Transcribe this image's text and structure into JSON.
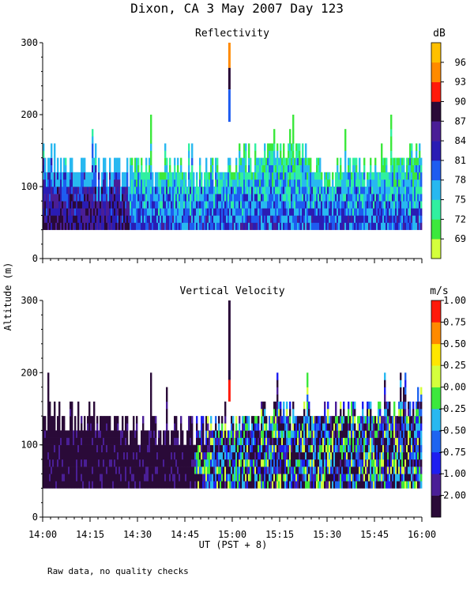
{
  "title": "Dixon, CA  3 May 2007  Day 123",
  "ylabel": "Altitude (m)",
  "xlabel": "UT  (PST + 8)",
  "footnote": "Raw data, no quality checks",
  "chart_data": [
    {
      "type": "heatmap",
      "name": "reflectivity",
      "title": "Reflectivity",
      "units_label": "dB",
      "x_range_hours": [
        14.0,
        16.0
      ],
      "ylim": [
        0,
        300
      ],
      "y_ticks": [
        0,
        100,
        200,
        300
      ],
      "x_ticks": [
        "14:00",
        "14:15",
        "14:30",
        "14:45",
        "15:00",
        "15:15",
        "15:30",
        "15:45",
        "16:00"
      ],
      "x_ticks_hours": [
        14.0,
        14.25,
        14.5,
        14.75,
        15.0,
        15.25,
        15.5,
        15.75,
        16.0
      ],
      "data_floor_m": 40,
      "colorbar": {
        "levels": [
          69,
          72,
          75,
          78,
          81,
          84,
          87,
          90,
          93,
          96
        ],
        "colors": [
          "#d4ff3c",
          "#3ce83c",
          "#30f0a0",
          "#28b8f0",
          "#1e5cf0",
          "#2a1cb4",
          "#4a1e96",
          "#2a0a38",
          "#ff1a0a",
          "#ff8a00",
          "#ffc000"
        ]
      },
      "annotations": {
        "spike_time_hours": 14.985,
        "spike_top_m": 300,
        "profile_top_m": {
          "14:00": 140,
          "14:15": 120,
          "14:30": 130,
          "14:45": 120,
          "15:00": 130,
          "15:15": 160,
          "15:30": 120,
          "15:45": 130,
          "16:00": 150
        }
      }
    },
    {
      "type": "heatmap",
      "name": "vertical_velocity",
      "title": "Vertical Velocity",
      "units_label": "m/s",
      "x_range_hours": [
        14.0,
        16.0
      ],
      "ylim": [
        0,
        300
      ],
      "y_ticks": [
        0,
        100,
        200,
        300
      ],
      "x_ticks": [
        "14:00",
        "14:15",
        "14:30",
        "14:45",
        "15:00",
        "15:15",
        "15:30",
        "15:45",
        "16:00"
      ],
      "x_ticks_hours": [
        14.0,
        14.25,
        14.5,
        14.75,
        15.0,
        15.25,
        15.5,
        15.75,
        16.0
      ],
      "data_floor_m": 40,
      "colorbar": {
        "levels": [
          "-2.00",
          "-1.00",
          "-0.75",
          "-0.50",
          "-0.25",
          "0.00",
          "0.25",
          "0.50",
          "0.75",
          "1.00"
        ],
        "colors": [
          "#2a0a38",
          "#4a1e96",
          "#1e1ef0",
          "#1e64f0",
          "#28b8f0",
          "#3ce83c",
          "#d4ff3c",
          "#ffe600",
          "#ff8a00",
          "#ff1a0a"
        ]
      },
      "annotations": {
        "spike_time_hours": 14.985,
        "spike_top_m": 300,
        "profile_top_m": {
          "14:00": 140,
          "14:15": 140,
          "14:30": 120,
          "14:45": 120,
          "15:00": 130,
          "15:15": 150,
          "15:30": 140,
          "15:45": 150,
          "16:00": 160
        }
      }
    }
  ]
}
